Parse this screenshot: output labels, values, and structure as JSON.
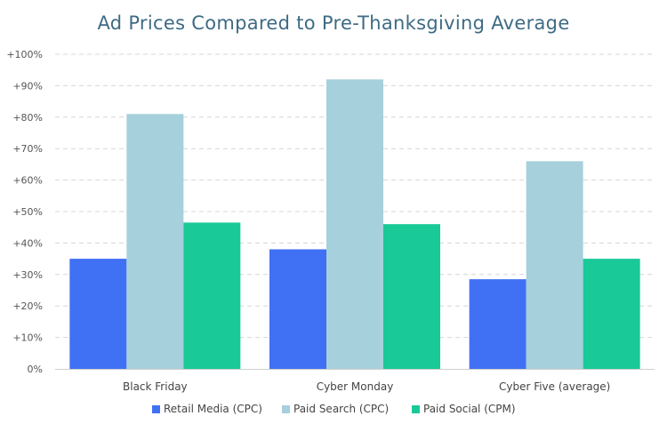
{
  "chart_data": {
    "type": "bar",
    "title": "Ad Prices Compared to Pre-Thanksgiving  Average",
    "xlabel": "",
    "ylabel": "",
    "categories": [
      "Black Friday",
      "Cyber Monday",
      "Cyber Five (average)"
    ],
    "series": [
      {
        "name": "Retail Media (CPC)",
        "values": [
          35,
          38,
          28.5
        ],
        "color": "#4070f4"
      },
      {
        "name": "Paid Search (CPC)",
        "values": [
          81,
          92,
          66
        ],
        "color": "#a5d0dc"
      },
      {
        "name": "Paid Social (CPM)",
        "values": [
          46.5,
          46,
          35
        ],
        "color": "#19c997"
      }
    ],
    "ylim": [
      0,
      100
    ],
    "yticks": [
      0,
      10,
      20,
      30,
      40,
      50,
      60,
      70,
      80,
      90,
      100
    ],
    "ytick_labels": [
      "0%",
      "+10%",
      "+20%",
      "+30%",
      "+40%",
      "+50%",
      "+60%",
      "+70%",
      "+80%",
      "+90%",
      "+100%"
    ],
    "grid": true,
    "legend_position": "bottom-center"
  }
}
